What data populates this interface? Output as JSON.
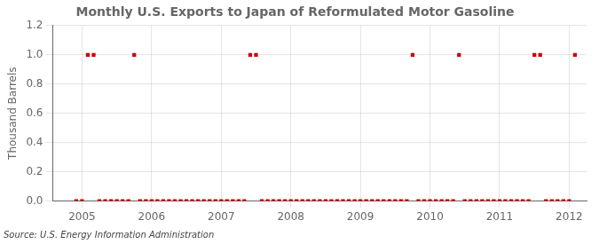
{
  "chart_data": {
    "type": "scatter",
    "title": "Monthly U.S. Exports to Japan of Reformulated Motor Gasoline",
    "ylabel": "Thousand Barrels",
    "annotations": [
      "Source: U.S. Energy Information Administration"
    ],
    "marker": "square",
    "color": "#cc0000",
    "grid": true,
    "xlim": [
      2004.58,
      2012.25
    ],
    "ylim": [
      0.0,
      1.2
    ],
    "xticks": [
      2005,
      2006,
      2007,
      2008,
      2009,
      2010,
      2011,
      2012
    ],
    "yticks": [
      {
        "value": 0.0,
        "label": "0.0"
      },
      0.2,
      0.4,
      0.6,
      0.8,
      {
        "value": 1.0,
        "label": "1.0"
      },
      1.2
    ],
    "x": [
      2004.917,
      2005.0,
      2005.083,
      2005.167,
      2005.25,
      2005.333,
      2005.417,
      2005.5,
      2005.583,
      2005.667,
      2005.75,
      2005.833,
      2005.917,
      2006.0,
      2006.083,
      2006.167,
      2006.25,
      2006.333,
      2006.417,
      2006.5,
      2006.583,
      2006.667,
      2006.75,
      2006.833,
      2006.917,
      2007.0,
      2007.083,
      2007.167,
      2007.25,
      2007.333,
      2007.417,
      2007.5,
      2007.583,
      2007.667,
      2007.75,
      2007.833,
      2007.917,
      2008.0,
      2008.083,
      2008.167,
      2008.25,
      2008.333,
      2008.417,
      2008.5,
      2008.583,
      2008.667,
      2008.75,
      2008.833,
      2008.917,
      2009.0,
      2009.083,
      2009.167,
      2009.25,
      2009.333,
      2009.417,
      2009.5,
      2009.583,
      2009.667,
      2009.75,
      2009.833,
      2009.917,
      2010.0,
      2010.083,
      2010.167,
      2010.25,
      2010.333,
      2010.417,
      2010.5,
      2010.583,
      2010.667,
      2010.75,
      2010.833,
      2010.917,
      2011.0,
      2011.083,
      2011.167,
      2011.25,
      2011.333,
      2011.417,
      2011.5,
      2011.583,
      2011.667,
      2011.75,
      2011.833,
      2011.917,
      2012.0,
      2012.083
    ],
    "values": [
      0,
      0,
      1,
      1,
      0,
      0,
      0,
      0,
      0,
      0,
      1,
      0,
      0,
      0,
      0,
      0,
      0,
      0,
      0,
      0,
      0,
      0,
      0,
      0,
      0,
      0,
      0,
      0,
      0,
      0,
      1,
      1,
      0,
      0,
      0,
      0,
      0,
      0,
      0,
      0,
      0,
      0,
      0,
      0,
      0,
      0,
      0,
      0,
      0,
      0,
      0,
      0,
      0,
      0,
      0,
      0,
      0,
      0,
      1,
      0,
      0,
      0,
      0,
      0,
      0,
      0,
      1,
      0,
      0,
      0,
      0,
      0,
      0,
      0,
      0,
      0,
      0,
      0,
      0,
      1,
      1,
      0,
      0,
      0,
      0,
      0,
      1
    ]
  }
}
